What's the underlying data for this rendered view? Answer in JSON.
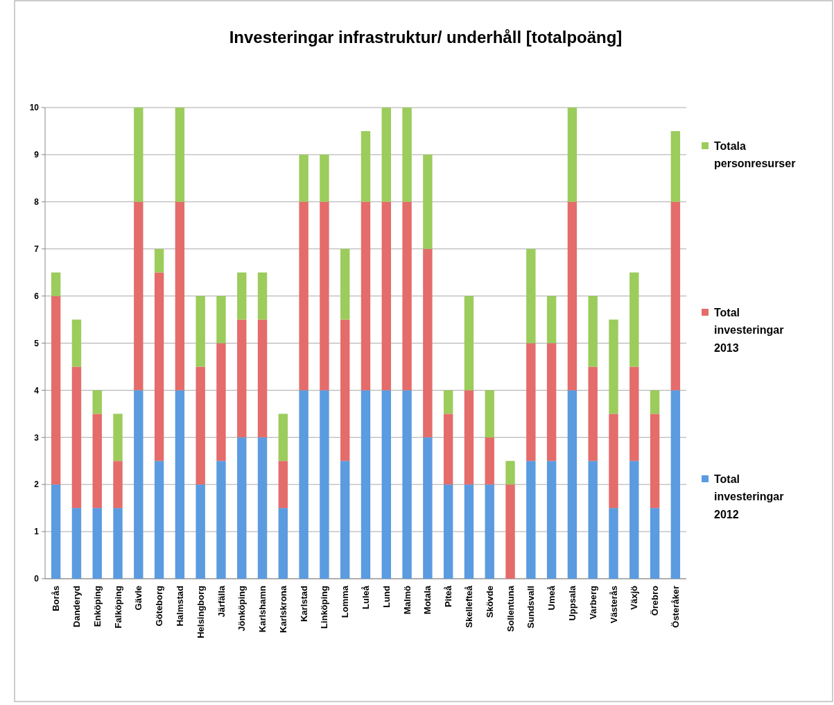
{
  "chart_data": {
    "type": "bar",
    "stacked": true,
    "title": "Investeringar infrastruktur/ underhåll [totalpoäng]",
    "categories": [
      "Borås",
      "Danderyd",
      "Enköping",
      "Falköping",
      "Gävle",
      "Göteborg",
      "Halmstad",
      "Helsingborg",
      "Järfälla",
      "Jönköping",
      "Karlshamn",
      "Karlskrona",
      "Karlstad",
      "Linköping",
      "Lomma",
      "Luleå",
      "Lund",
      "Malmö",
      "Motala",
      "Piteå",
      "Skellefteå",
      "Skövde",
      "Sollentuna",
      "Sundsvall",
      "Umeå",
      "Uppsala",
      "Varberg",
      "Västerås",
      "Växjö",
      "Örebro",
      "Österåker"
    ],
    "series": [
      {
        "name": "Total investeringar 2012",
        "color": "#5b9be0",
        "values": [
          2,
          1.5,
          1.5,
          1.5,
          4,
          2.5,
          4,
          2,
          2.5,
          3,
          3,
          1.5,
          4,
          4,
          2.5,
          4,
          4,
          4,
          3,
          2,
          2,
          2,
          0,
          2.5,
          2.5,
          4,
          2.5,
          1.5,
          2.5,
          1.5,
          4
        ]
      },
      {
        "name": "Total investeringar 2013",
        "color": "#e46c6a",
        "values": [
          4,
          3,
          2,
          1,
          4,
          4,
          4,
          2.5,
          2.5,
          2.5,
          2.5,
          1,
          4,
          4,
          3,
          4,
          4,
          4,
          4,
          1.5,
          2,
          1,
          2,
          2.5,
          2.5,
          4,
          2,
          2,
          2,
          2,
          4
        ]
      },
      {
        "name": "Totala personresurser",
        "color": "#9ccc5c",
        "values": [
          0.5,
          1,
          0.5,
          1,
          2,
          0.5,
          2,
          1.5,
          1,
          1,
          1,
          1,
          1,
          1,
          1.5,
          1.5,
          2,
          2,
          2,
          0.5,
          2,
          1,
          0.5,
          2,
          1,
          2,
          1.5,
          2,
          2,
          0.5,
          1.5
        ]
      }
    ],
    "ylim": [
      0,
      10
    ],
    "yticks": [
      0,
      1,
      2,
      3,
      4,
      5,
      6,
      7,
      8,
      9,
      10
    ],
    "grid": "y",
    "legend": "right"
  }
}
